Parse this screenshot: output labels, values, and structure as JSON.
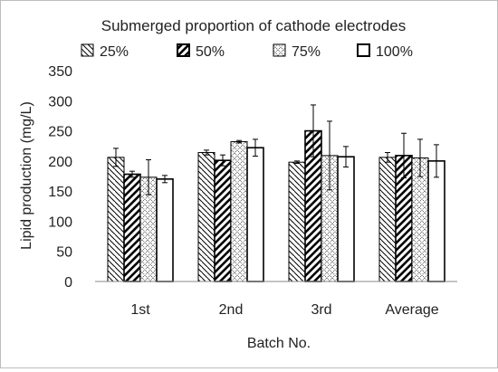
{
  "chart_data": {
    "type": "bar",
    "title": "Submerged proportion of cathode electrodes",
    "xlabel": "Batch No.",
    "ylabel": "Lipid production (mg/L)",
    "ylim": [
      0,
      350
    ],
    "yticks": [
      "0",
      "50",
      "100",
      "150",
      "200",
      "250",
      "300",
      "350"
    ],
    "categories": [
      "1st",
      "2nd",
      "3rd",
      "Average"
    ],
    "grid": false,
    "legend_position": "top",
    "series": [
      {
        "name": "25%",
        "pattern": "diag-down-thin",
        "values": [
          206,
          214,
          198,
          206
        ],
        "errors": [
          15,
          4,
          2,
          8
        ]
      },
      {
        "name": "50%",
        "pattern": "diag-up-thick",
        "values": [
          178,
          201,
          250,
          209
        ],
        "errors": [
          5,
          9,
          43,
          37
        ]
      },
      {
        "name": "75%",
        "pattern": "diamond-dots",
        "values": [
          173,
          232,
          209,
          205
        ],
        "errors": [
          29,
          2,
          57,
          31
        ]
      },
      {
        "name": "100%",
        "pattern": "solid-white",
        "values": [
          170,
          222,
          207,
          200
        ],
        "errors": [
          6,
          14,
          17,
          27
        ]
      }
    ],
    "colors": {
      "outline": "#000000",
      "fill": "#ffffff"
    }
  }
}
